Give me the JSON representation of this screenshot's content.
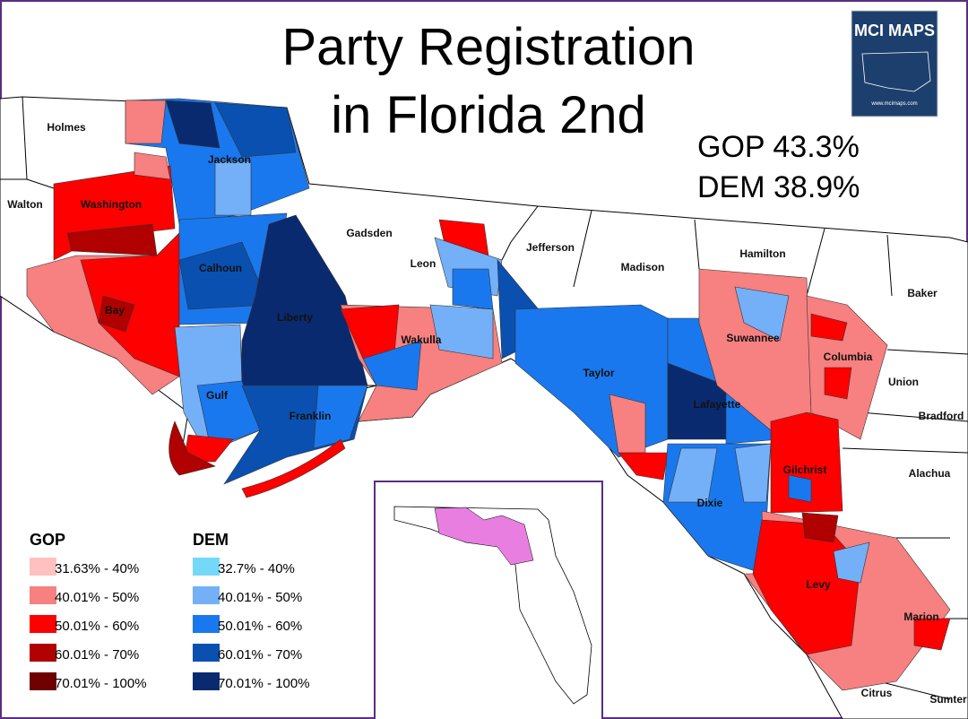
{
  "title": {
    "line1": "Party Registration",
    "line2": "in Florida 2nd"
  },
  "totals": {
    "gop": "GOP 43.3%",
    "dem": "DEM 38.9%"
  },
  "logo": {
    "name": "MCI MAPS",
    "url": "www.mcimaps.com"
  },
  "counties": [
    "Holmes",
    "Walton",
    "Washington",
    "Jackson",
    "Bay",
    "Calhoun",
    "Gadsden",
    "Leon",
    "Jefferson",
    "Madison",
    "Hamilton",
    "Baker",
    "Liberty",
    "Wakulla",
    "Gulf",
    "Franklin",
    "Taylor",
    "Suwannee",
    "Columbia",
    "Union",
    "Bradford",
    "Lafayette",
    "Alachua",
    "Gilchrist",
    "Dixie",
    "Levy",
    "Marion",
    "Citrus",
    "Sumter"
  ],
  "legend": [
    {
      "title": "GOP",
      "items": [
        {
          "label": "31.63% - 40%",
          "color": "#ffc0c0"
        },
        {
          "label": "40.01% - 50%",
          "color": "#f78080"
        },
        {
          "label": "50.01% - 60%",
          "color": "#ff0000"
        },
        {
          "label": "60.01% - 70%",
          "color": "#b00000"
        },
        {
          "label": "70.01% - 100%",
          "color": "#6e0000"
        }
      ]
    },
    {
      "title": "DEM",
      "items": [
        {
          "label": "32.7% - 40%",
          "color": "#74d8f8"
        },
        {
          "label": "40.01% - 50%",
          "color": "#74b0f8"
        },
        {
          "label": "50.01% - 60%",
          "color": "#1a78ee"
        },
        {
          "label": "60.01% - 70%",
          "color": "#0a50b0"
        },
        {
          "label": "70.01% - 100%",
          "color": "#0a2a70"
        }
      ]
    }
  ]
}
